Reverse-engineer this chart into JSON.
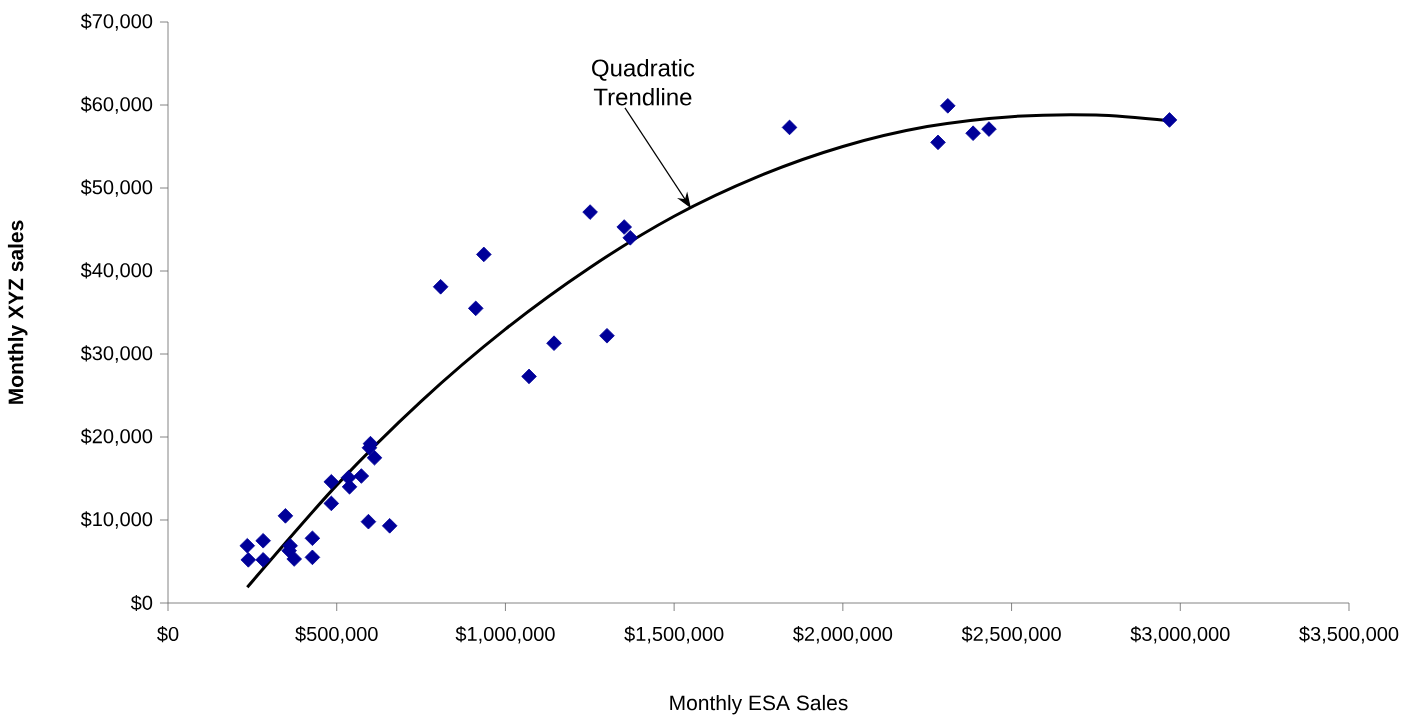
{
  "chart_data": {
    "type": "scatter",
    "xlabel": "Monthly ESA Sales",
    "ylabel": "Monthly XYZ sales",
    "line_style": "solid",
    "xlim": [
      0,
      3500000
    ],
    "ylim": [
      0,
      70000
    ],
    "xticks": [
      {
        "value": 0,
        "label": "$0"
      },
      {
        "value": 500000,
        "label": "$500,000"
      },
      {
        "value": 1000000,
        "label": "$1,000,000"
      },
      {
        "value": 1500000,
        "label": "$1,500,000"
      },
      {
        "value": 2000000,
        "label": "$2,000,000"
      },
      {
        "value": 2500000,
        "label": "$2,500,000"
      },
      {
        "value": 3000000,
        "label": "$3,000,000"
      },
      {
        "value": 3500000,
        "label": "$3,500,000"
      }
    ],
    "yticks": [
      {
        "value": 0,
        "label": "$0"
      },
      {
        "value": 10000,
        "label": "$10,000"
      },
      {
        "value": 20000,
        "label": "$20,000"
      },
      {
        "value": 30000,
        "label": "$30,000"
      },
      {
        "value": 40000,
        "label": "$40,000"
      },
      {
        "value": 50000,
        "label": "$50,000"
      },
      {
        "value": 60000,
        "label": "$60,000"
      },
      {
        "value": 70000,
        "label": "$70,000"
      }
    ],
    "series": [
      {
        "marker": "diamond",
        "color": "#000099",
        "x": [
          235000,
          238000,
          282000,
          282000,
          348000,
          362000,
          359000,
          374000,
          428000,
          428000,
          484000,
          484000,
          535000,
          538000,
          573000,
          594000,
          600000,
          597000,
          612000,
          657000,
          808000,
          912000,
          936000,
          1070000,
          1144000,
          1251000,
          1301000,
          1352000,
          1370000,
          1842000,
          2282000,
          2311000,
          2386000,
          2433000,
          2968000
        ],
        "values": [
          6900,
          5200,
          7500,
          5200,
          10500,
          6900,
          6300,
          5300,
          7800,
          5500,
          14600,
          12000,
          15100,
          14000,
          15300,
          9800,
          19200,
          18700,
          17500,
          9300,
          38100,
          35500,
          42000,
          27300,
          31300,
          47100,
          32200,
          45300,
          44000,
          57300,
          55500,
          59900,
          56600,
          57100,
          58200
        ]
      },
      {
        "type": "line",
        "color": "#000000",
        "x": [
          235000,
          500000,
          750000,
          1000000,
          1250000,
          1500000,
          1750000,
          2000000,
          2250000,
          2500000,
          2750000,
          2968000
        ],
        "values": [
          1900,
          14200,
          24300,
          33000,
          40400,
          46600,
          51400,
          55000,
          57400,
          58600,
          58800,
          58100
        ]
      }
    ],
    "annotations": [
      "Quadratic Trendline"
    ]
  }
}
